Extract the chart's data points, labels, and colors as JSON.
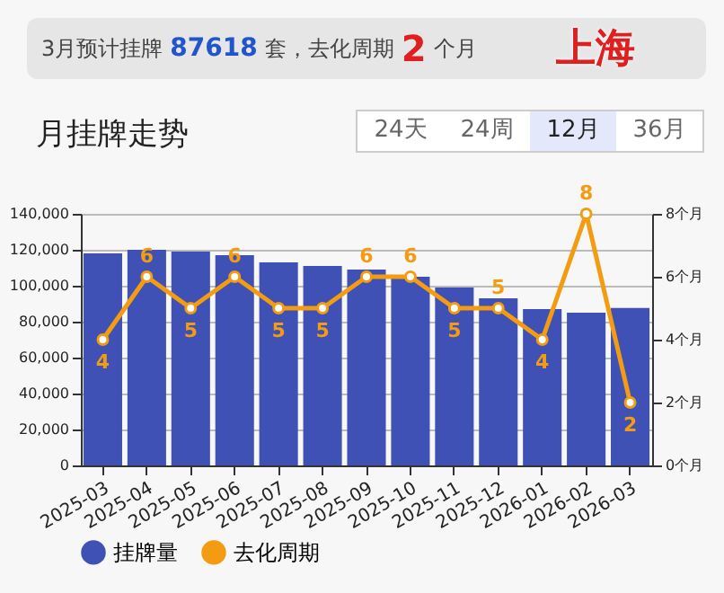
{
  "chart_data": {
    "type": "bar",
    "title": "月挂牌走势",
    "annotations": [
      "3月预计挂牌",
      "87618",
      "套，去化周期",
      "2",
      "个月",
      "上海",
      "24天",
      "24周",
      "12月",
      "36月"
    ],
    "categories": [
      "2025-03",
      "2025-04",
      "2025-05",
      "2025-06",
      "2025-07",
      "2025-08",
      "2025-09",
      "2025-10",
      "2025-11",
      "2025-12",
      "2026-01",
      "2026-02",
      "2026-03"
    ],
    "series": [
      {
        "name": "挂牌量",
        "color": "#3f51b5",
        "values": [
          118000,
          120000,
          119000,
          117000,
          113000,
          111000,
          109000,
          105000,
          99000,
          93000,
          87000,
          85000,
          87618
        ]
      },
      {
        "name": "去化周期",
        "type": "line",
        "axis": "y2",
        "color": "#f39c12",
        "values": [
          4,
          6,
          5,
          6,
          5,
          5,
          6,
          6,
          5,
          5,
          4,
          8,
          2
        ],
        "value_labels": [
          "4",
          "6",
          "5",
          "6",
          "5",
          "5",
          "6",
          "6",
          "5",
          "5",
          "4",
          "8",
          "2"
        ]
      }
    ],
    "ylim": [
      0,
      140000
    ],
    "yticks": [
      0,
      {
        "value": 20000,
        "label": "20,000"
      },
      {
        "value": 40000,
        "label": "40,000"
      },
      {
        "value": 60000,
        "label": "60,000"
      },
      {
        "value": 80000,
        "label": "80,000"
      },
      {
        "value": 100000,
        "label": "100,000"
      },
      {
        "value": 120000,
        "label": "120,000"
      },
      {
        "value": 140000,
        "label": "140,000"
      }
    ],
    "y2lim": [
      0,
      8
    ],
    "y2ticks": [
      {
        "value": 0,
        "label": "0个月"
      },
      {
        "value": 2,
        "label": "2个月"
      },
      {
        "value": 4,
        "label": "4个月"
      },
      {
        "value": 6,
        "label": "6个月"
      },
      {
        "value": 8,
        "label": "8个月"
      }
    ],
    "grid": "y",
    "legend": "bottom",
    "marker": "circle"
  }
}
